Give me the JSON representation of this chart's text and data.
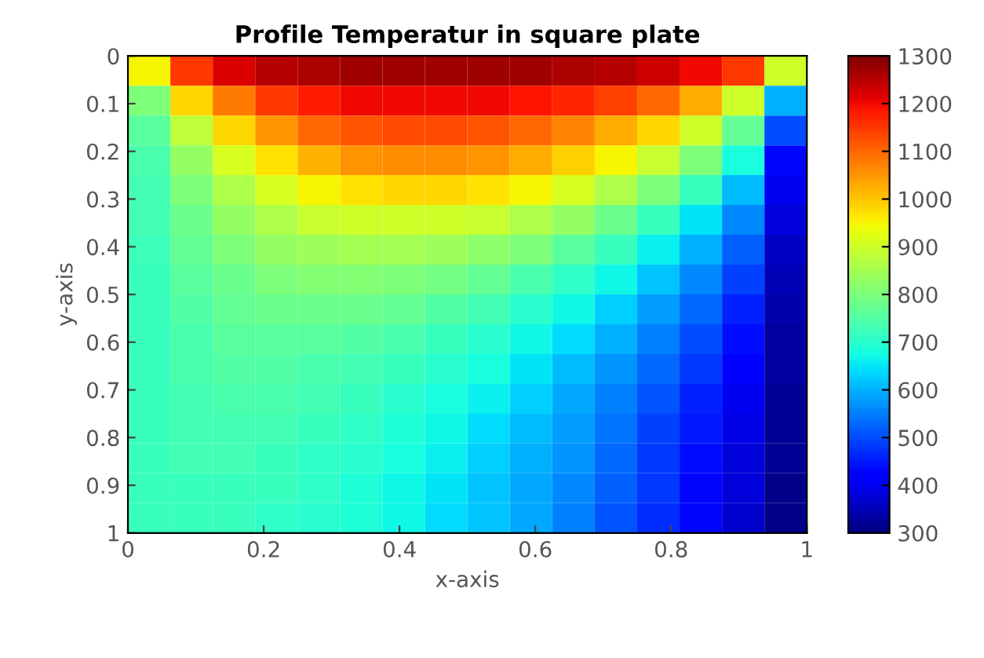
{
  "chart_data": {
    "type": "heatmap",
    "title": "Profile Temperatur in square plate",
    "xlabel": "x-axis",
    "ylabel": "y-axis",
    "xlim": [
      0,
      1
    ],
    "ylim": [
      1,
      0
    ],
    "xticks": [
      0,
      0.2,
      0.4,
      0.6,
      0.8,
      1
    ],
    "yticks": [
      0,
      0.1,
      0.2,
      0.3,
      0.4,
      0.5,
      0.6,
      0.7,
      0.8,
      0.9,
      1
    ],
    "clim": [
      300,
      1300
    ],
    "cticks": [
      300,
      400,
      500,
      600,
      700,
      800,
      900,
      1000,
      1100,
      1200,
      1300
    ],
    "cells": [
      [
        950,
        1150,
        1220,
        1250,
        1260,
        1270,
        1270,
        1270,
        1270,
        1270,
        1260,
        1250,
        1230,
        1200,
        1150,
        900
      ],
      [
        800,
        980,
        1080,
        1150,
        1180,
        1200,
        1200,
        1200,
        1200,
        1190,
        1170,
        1140,
        1100,
        1030,
        900,
        600
      ],
      [
        760,
        880,
        980,
        1050,
        1100,
        1120,
        1130,
        1130,
        1120,
        1100,
        1070,
        1030,
        980,
        900,
        770,
        500
      ],
      [
        740,
        830,
        910,
        970,
        1020,
        1050,
        1060,
        1060,
        1050,
        1030,
        990,
        950,
        890,
        800,
        680,
        430
      ],
      [
        730,
        800,
        860,
        910,
        950,
        970,
        980,
        980,
        970,
        950,
        910,
        860,
        800,
        720,
        610,
        400
      ],
      [
        730,
        780,
        830,
        860,
        890,
        900,
        900,
        900,
        890,
        860,
        830,
        780,
        720,
        650,
        560,
        380
      ],
      [
        725,
        770,
        800,
        830,
        840,
        850,
        850,
        840,
        820,
        800,
        760,
        720,
        660,
        600,
        520,
        360
      ],
      [
        720,
        760,
        780,
        800,
        810,
        810,
        800,
        790,
        770,
        740,
        710,
        670,
        620,
        560,
        490,
        350
      ],
      [
        720,
        750,
        770,
        780,
        780,
        780,
        770,
        750,
        730,
        700,
        670,
        630,
        580,
        530,
        460,
        340
      ],
      [
        720,
        740,
        760,
        760,
        760,
        750,
        740,
        720,
        700,
        670,
        640,
        600,
        550,
        500,
        440,
        330
      ],
      [
        720,
        740,
        750,
        750,
        740,
        730,
        720,
        700,
        680,
        650,
        610,
        570,
        530,
        480,
        420,
        330
      ],
      [
        720,
        730,
        740,
        740,
        730,
        720,
        700,
        680,
        660,
        630,
        590,
        550,
        510,
        460,
        400,
        320
      ],
      [
        720,
        730,
        730,
        730,
        720,
        710,
        690,
        670,
        640,
        610,
        580,
        540,
        490,
        450,
        390,
        320
      ],
      [
        720,
        730,
        730,
        720,
        710,
        700,
        680,
        660,
        630,
        600,
        570,
        530,
        480,
        440,
        380,
        320
      ],
      [
        720,
        720,
        720,
        720,
        710,
        690,
        670,
        650,
        620,
        590,
        560,
        520,
        480,
        430,
        380,
        310
      ],
      [
        720,
        720,
        720,
        710,
        700,
        690,
        670,
        640,
        620,
        590,
        550,
        510,
        470,
        430,
        370,
        310
      ]
    ]
  }
}
